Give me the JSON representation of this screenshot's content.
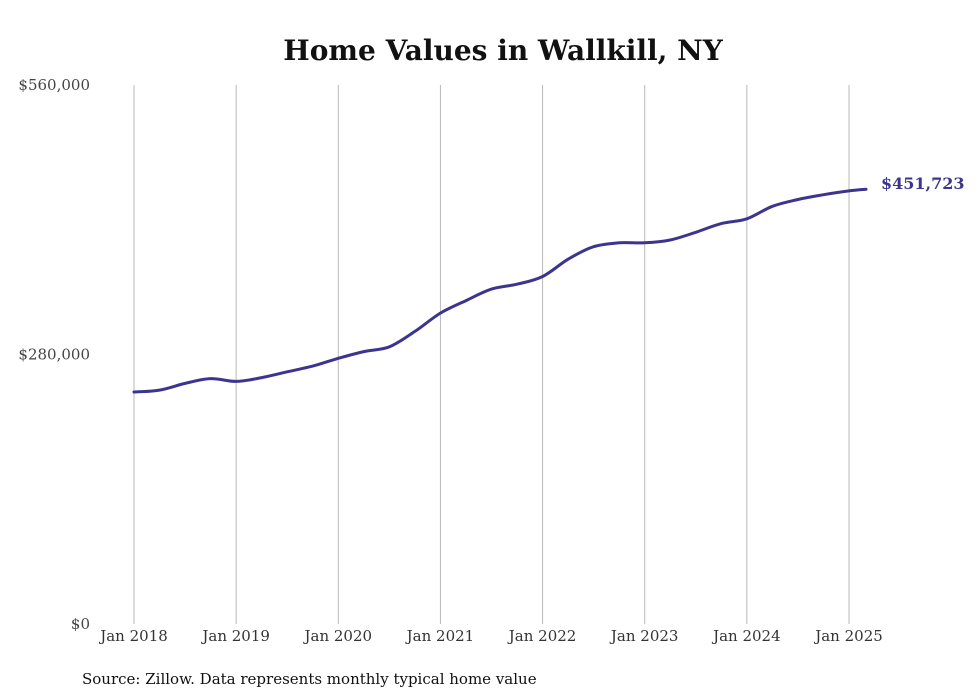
{
  "chart_data": {
    "type": "line",
    "title": "Home Values in Wallkill, NY",
    "source": "Source: Zillow. Data represents monthly typical home value",
    "ylim": [
      0,
      560000
    ],
    "y_ticks": [
      {
        "value": 0,
        "label": "$0"
      },
      {
        "value": 280000,
        "label": "$280,000"
      },
      {
        "value": 560000,
        "label": "$560,000"
      }
    ],
    "x_ticks": [
      {
        "value": "2018-01",
        "label": "Jan 2018"
      },
      {
        "value": "2019-01",
        "label": "Jan 2019"
      },
      {
        "value": "2020-01",
        "label": "Jan 2020"
      },
      {
        "value": "2021-01",
        "label": "Jan 2021"
      },
      {
        "value": "2022-01",
        "label": "Jan 2022"
      },
      {
        "value": "2023-01",
        "label": "Jan 2023"
      },
      {
        "value": "2024-01",
        "label": "Jan 2024"
      },
      {
        "value": "2025-01",
        "label": "Jan 2025"
      }
    ],
    "grid": "vertical",
    "line_color": "#3b3590",
    "end_label": "$451,723",
    "series": [
      {
        "points": [
          {
            "x": "2018-01",
            "y": 241000
          },
          {
            "x": "2018-04",
            "y": 243000
          },
          {
            "x": "2018-07",
            "y": 250000
          },
          {
            "x": "2018-10",
            "y": 255000
          },
          {
            "x": "2019-01",
            "y": 252000
          },
          {
            "x": "2019-04",
            "y": 256000
          },
          {
            "x": "2019-07",
            "y": 262000
          },
          {
            "x": "2019-10",
            "y": 268000
          },
          {
            "x": "2020-01",
            "y": 276000
          },
          {
            "x": "2020-04",
            "y": 283000
          },
          {
            "x": "2020-07",
            "y": 288000
          },
          {
            "x": "2020-10",
            "y": 304000
          },
          {
            "x": "2021-01",
            "y": 323000
          },
          {
            "x": "2021-04",
            "y": 336000
          },
          {
            "x": "2021-07",
            "y": 348000
          },
          {
            "x": "2021-10",
            "y": 353000
          },
          {
            "x": "2022-01",
            "y": 361000
          },
          {
            "x": "2022-04",
            "y": 379000
          },
          {
            "x": "2022-07",
            "y": 392000
          },
          {
            "x": "2022-10",
            "y": 396000
          },
          {
            "x": "2023-01",
            "y": 396000
          },
          {
            "x": "2023-04",
            "y": 399000
          },
          {
            "x": "2023-07",
            "y": 407000
          },
          {
            "x": "2023-10",
            "y": 416000
          },
          {
            "x": "2024-01",
            "y": 421000
          },
          {
            "x": "2024-04",
            "y": 434000
          },
          {
            "x": "2024-07",
            "y": 441000
          },
          {
            "x": "2024-10",
            "y": 446000
          },
          {
            "x": "2025-01",
            "y": 450000
          },
          {
            "x": "2025-03",
            "y": 451723
          }
        ]
      }
    ]
  }
}
